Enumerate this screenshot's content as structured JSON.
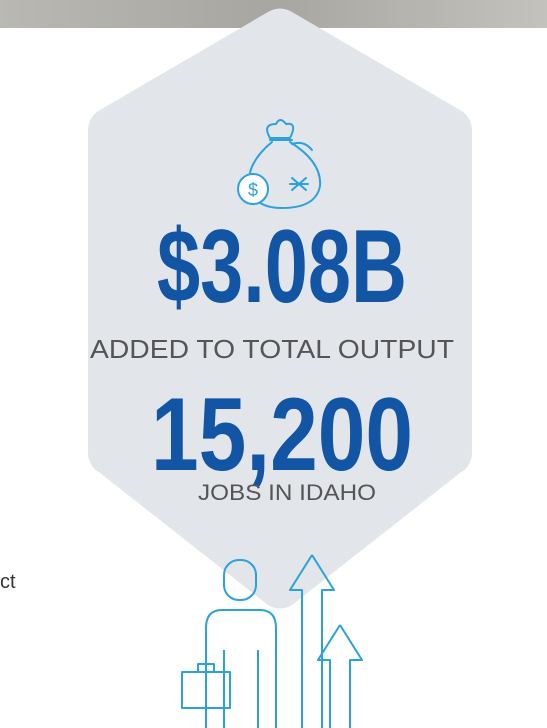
{
  "stats": [
    {
      "value": "$3.08B",
      "label": "ADDED TO TOTAL OUTPUT"
    },
    {
      "value": "15,200",
      "label": "JOBS IN IDAHO"
    }
  ],
  "side_text": "ct"
}
